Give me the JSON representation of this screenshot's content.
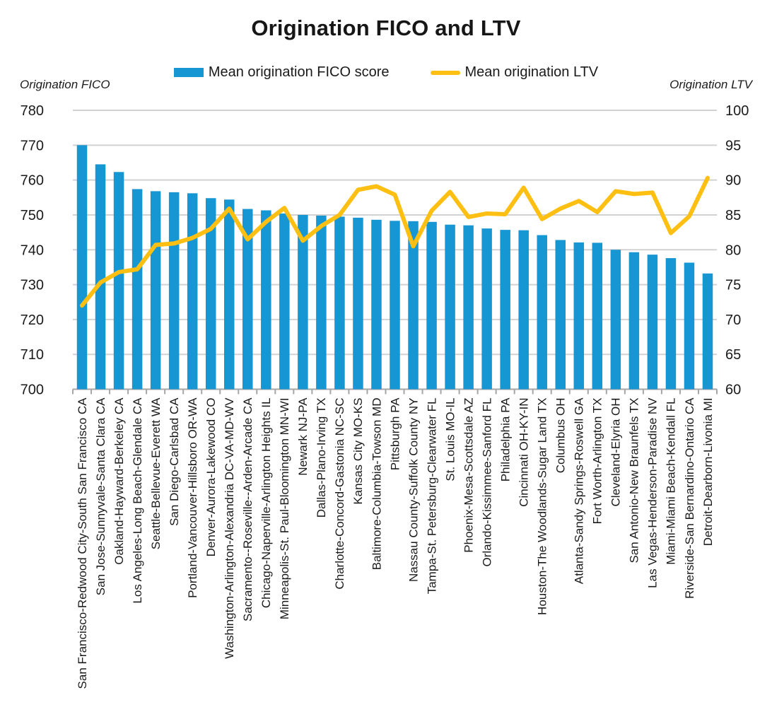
{
  "chart_data": {
    "type": "combo",
    "title": "Origination FICO and LTV",
    "grid": true,
    "legend_position": "top",
    "left_axis": {
      "label": "Origination FICO",
      "min": 700,
      "max": 780,
      "tick_step": 10
    },
    "right_axis": {
      "label": "Origination LTV",
      "min": 60,
      "max": 100,
      "tick_step": 5
    },
    "categories": [
      "San Francisco-Redwood City-South San Francisco CA",
      "San Jose-Sunnyvale-Santa Clara CA",
      "Oakland-Hayward-Berkeley CA",
      "Los Angeles-Long Beach-Glendale CA",
      "Seattle-Bellevue-Everett WA",
      "San Diego-Carlsbad CA",
      "Portland-Vancouver-Hillsboro OR-WA",
      "Denver-Aurora-Lakewood CO",
      "Washington-Arlington-Alexandria DC-VA-MD-WV",
      "Sacramento--Roseville--Arden-Arcade CA",
      "Chicago-Naperville-Arlington Heights IL",
      "Minneapolis-St. Paul-Bloomington MN-WI",
      "Newark NJ-PA",
      "Dallas-Plano-Irving TX",
      "Charlotte-Concord-Gastonia NC-SC",
      "Kansas City MO-KS",
      "Baltimore-Columbia-Towson MD",
      "Pittsburgh PA",
      "Nassau County-Suffolk County NY",
      "Tampa-St. Petersburg-Clearwater FL",
      "St. Louis MO-IL",
      "Phoenix-Mesa-Scottsdale AZ",
      "Orlando-Kissimmee-Sanford FL",
      "Philadelphia PA",
      "Cincinnati OH-KY-IN",
      "Houston-The Woodlands-Sugar Land TX",
      "Columbus OH",
      "Atlanta-Sandy Springs-Roswell GA",
      "Fort Worth-Arlington TX",
      "Cleveland-Elyria OH",
      "San Antonio-New Braunfels TX",
      "Las Vegas-Henderson-Paradise NV",
      "Miami-Miami Beach-Kendall FL",
      "Riverside-San Bernardino-Ontario CA",
      "Detroit-Dearborn-Livonia MI"
    ],
    "series": [
      {
        "name": "Mean origination FICO score",
        "type": "bar",
        "axis": "left",
        "color": "#1696d2",
        "values": [
          770,
          764.5,
          762.3,
          757.4,
          756.8,
          756.5,
          756.2,
          754.8,
          754.4,
          751.7,
          751.3,
          750.4,
          750,
          749.8,
          749.5,
          749.2,
          748.6,
          748.3,
          748.2,
          748,
          747.2,
          747,
          746.1,
          745.7,
          745.6,
          744.2,
          742.8,
          742.1,
          742,
          740,
          739.3,
          738.6,
          737.6,
          736.3,
          733.2
        ]
      },
      {
        "name": "Mean origination LTV",
        "type": "line",
        "axis": "right",
        "color": "#fdbf11",
        "values": [
          72,
          75.3,
          76.8,
          77.2,
          80.7,
          80.9,
          81.7,
          83,
          85.9,
          81.5,
          84,
          86,
          81.3,
          83.4,
          85,
          88.6,
          89.1,
          87.9,
          80.5,
          85.6,
          88.3,
          84.7,
          85.2,
          85.1,
          88.9,
          84.4,
          85.9,
          87,
          85.4,
          88.4,
          88,
          88.2,
          82.4,
          84.8,
          90.3
        ]
      }
    ],
    "style": {
      "gridline_color": "#d2d2d2",
      "axis_color": "#a6a6a6",
      "text_color": "#1a1a1a"
    }
  }
}
